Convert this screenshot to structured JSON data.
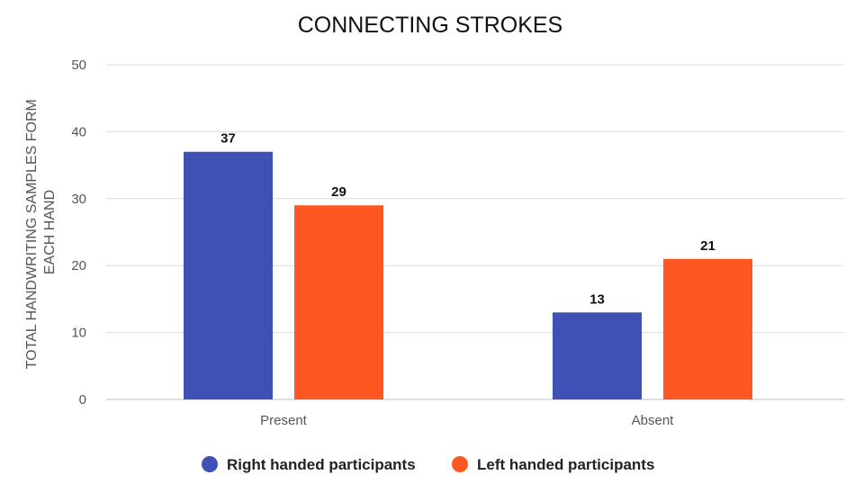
{
  "chart_data": {
    "type": "bar",
    "title": "CONNECTING STROKES",
    "ylabel": [
      "TOTAL HANDWRITING SAMPLES FORM",
      "EACH HAND"
    ],
    "xlabel": "",
    "categories": [
      "Present",
      "Absent"
    ],
    "ylim": [
      0,
      50
    ],
    "yticks": [
      0,
      10,
      20,
      30,
      40,
      50
    ],
    "grid": true,
    "legend_position": "bottom",
    "series": [
      {
        "name": "Right handed participants",
        "color": "#3f51b5",
        "values": [
          37,
          13
        ]
      },
      {
        "name": "Left handed participants",
        "color": "#ff5722",
        "values": [
          29,
          21
        ]
      }
    ]
  }
}
